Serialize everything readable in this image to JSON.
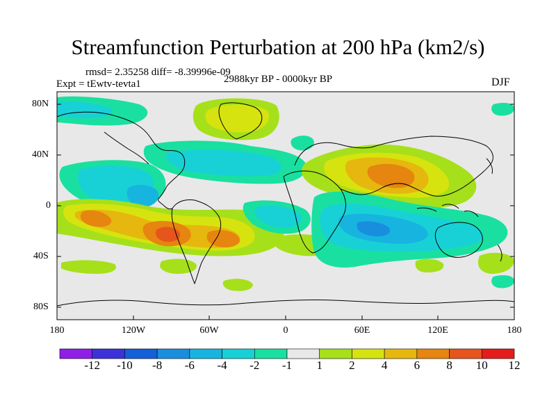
{
  "title": "Streamfunction Perturbation at 200 hPa (km2/s)",
  "stats_text": "rmsd= 2.35258 diff= -8.39996e-09",
  "experiment_text": "Expt = tEwtv-tevta1",
  "period_text": "2988kyr BP - 0000kyr BP",
  "season": "DJF",
  "lat_labels": [
    "80N",
    "40N",
    "0",
    "40S",
    "80S"
  ],
  "lon_labels": [
    "180",
    "120W",
    "60W",
    "0",
    "60E",
    "120E",
    "180"
  ],
  "colorbar": {
    "labels": [
      "-12",
      "-10",
      "-8",
      "-6",
      "-4",
      "-2",
      "-1",
      "1",
      "2",
      "4",
      "6",
      "8",
      "10",
      "12"
    ],
    "colors": [
      "#8f1fe6",
      "#3d32d9",
      "#1460d8",
      "#1a8ede",
      "#18b4e0",
      "#18d1d6",
      "#19e0a0",
      "#e8e8e8",
      "#a6e01a",
      "#d6e30f",
      "#e6b70e",
      "#e6850f",
      "#e6551e",
      "#e61c1c"
    ]
  },
  "map_colors": {
    "neutral": "#e8e8e8",
    "neg1": "#19e0a0",
    "neg2": "#18d1d6",
    "neg4": "#18b4e0",
    "neg6": "#1a8ede",
    "pos1": "#a6e01a",
    "pos2": "#d6e30f",
    "pos4": "#e6b70e",
    "pos6": "#e6850f",
    "pos8": "#e6551e"
  },
  "icons": {
    "coastline": "coastline-outline"
  }
}
